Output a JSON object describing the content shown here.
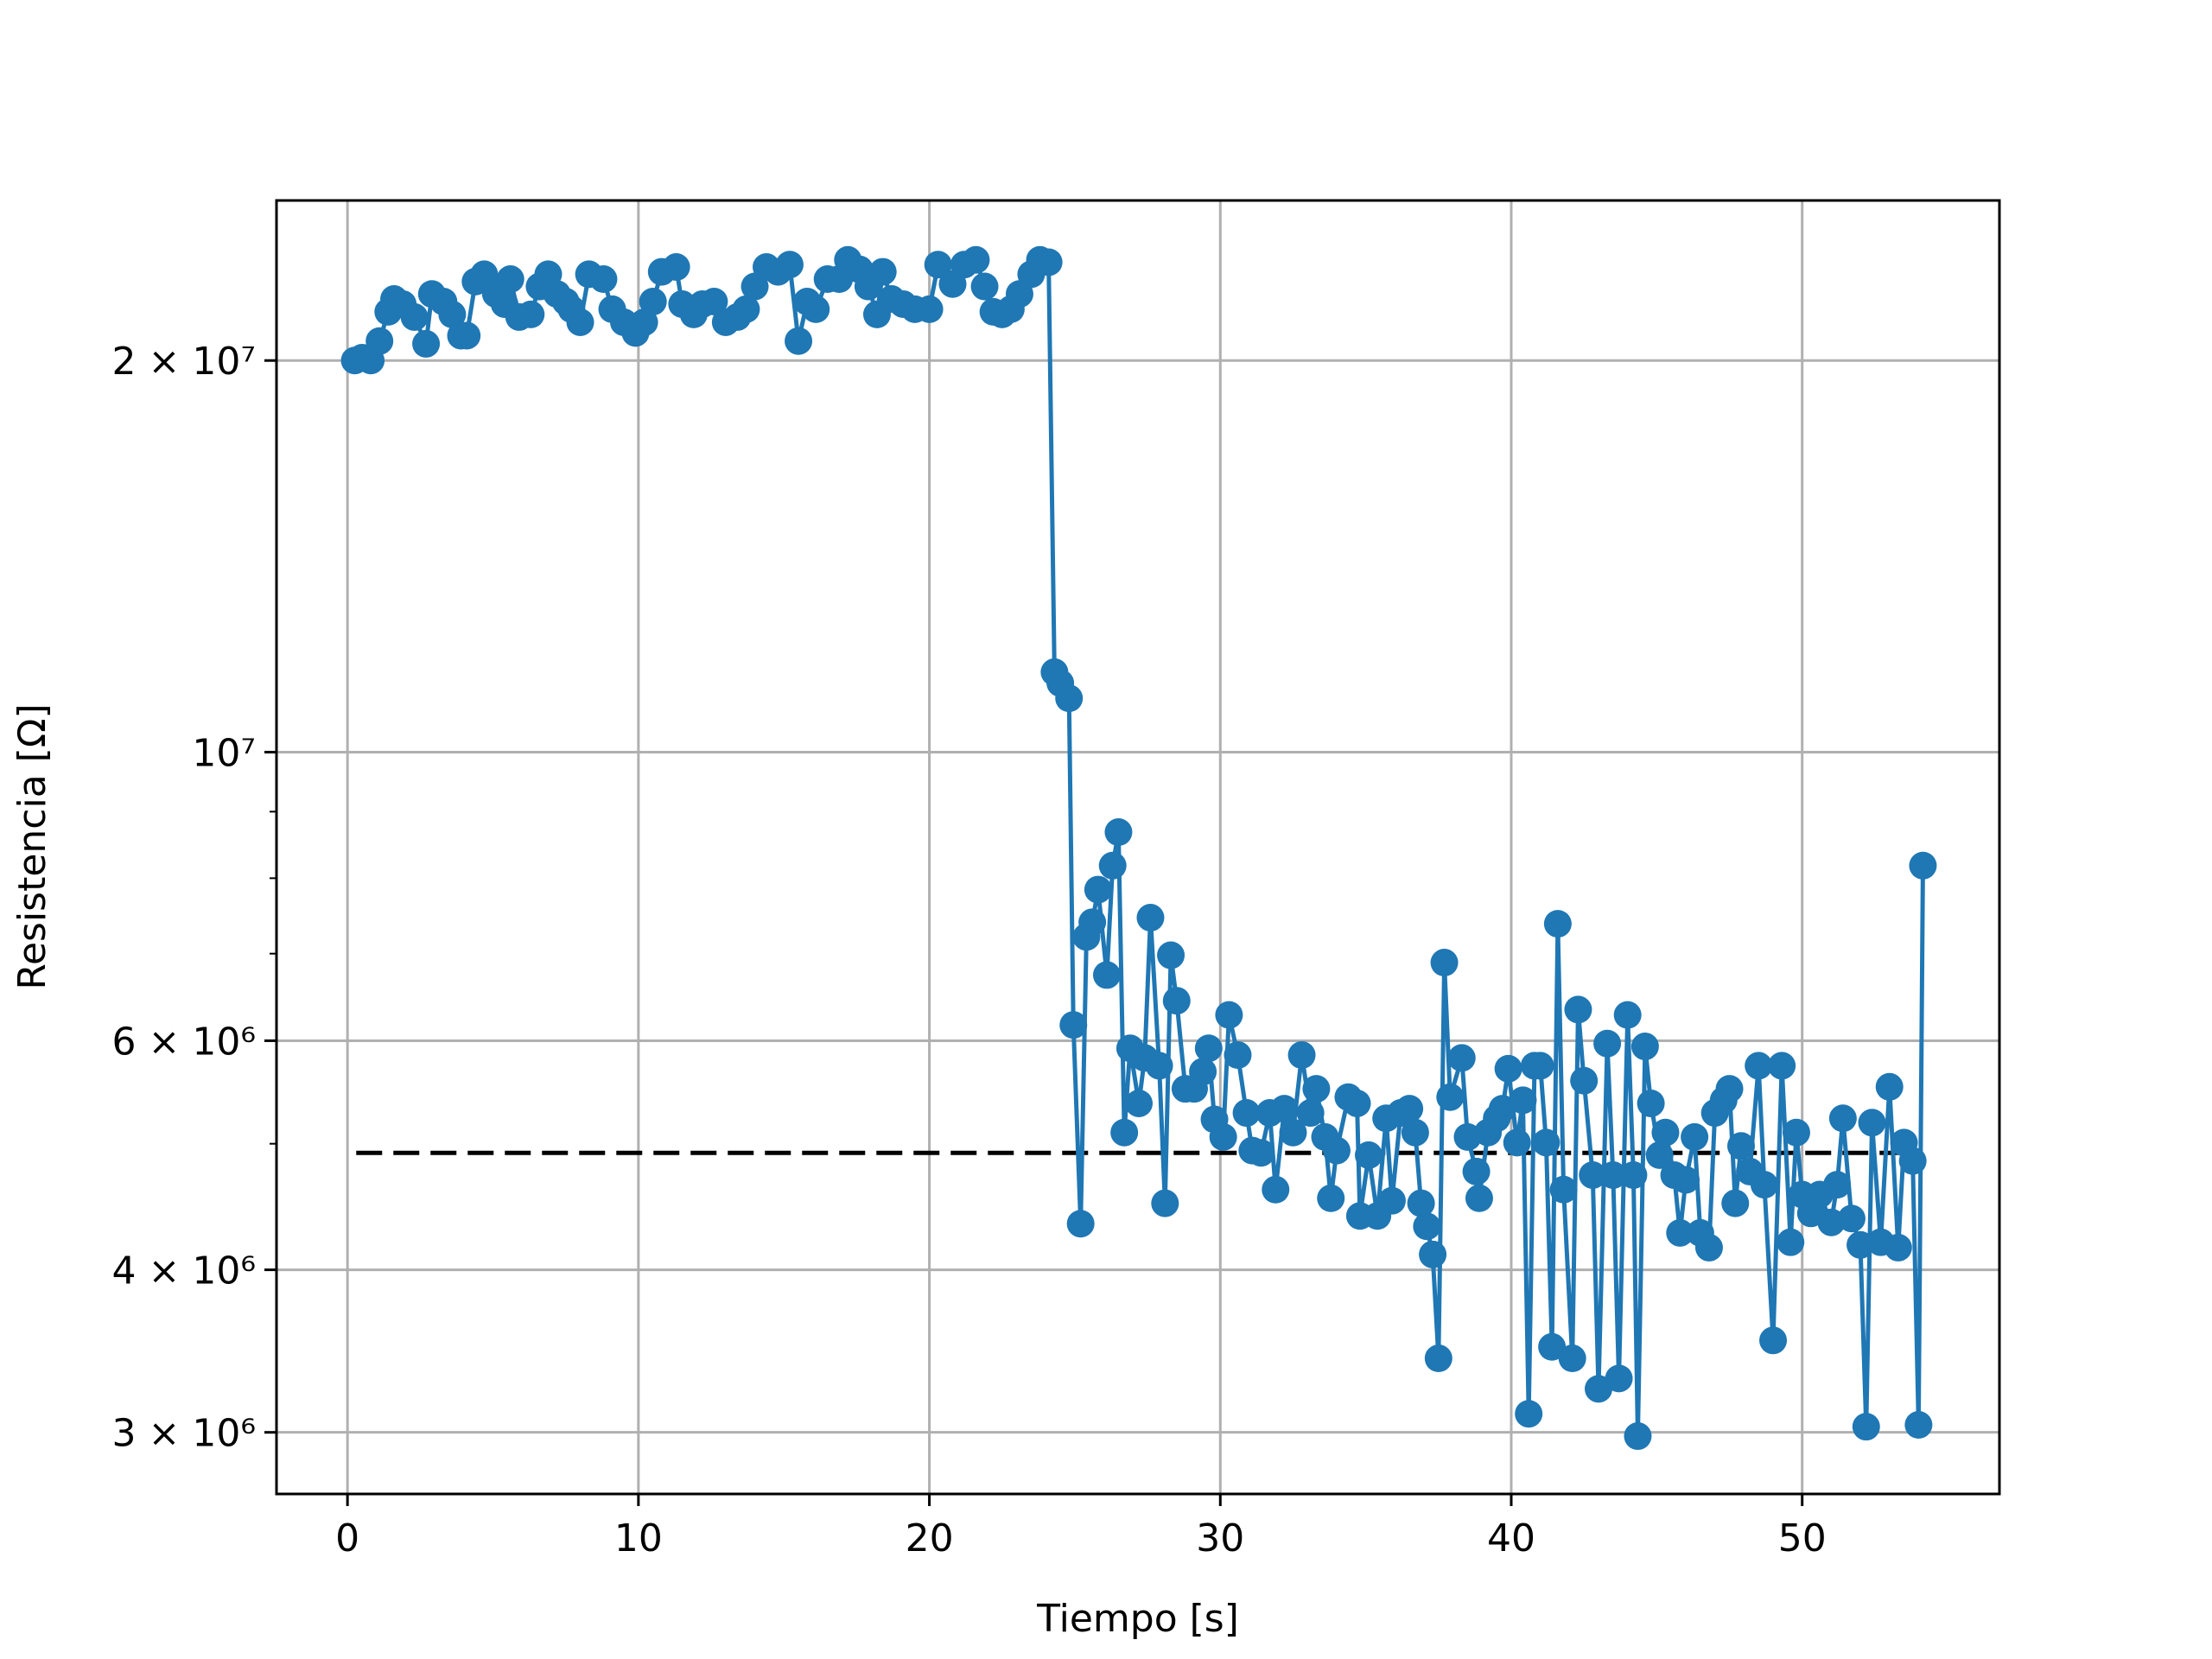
{
  "chart_data": {
    "type": "line",
    "xlabel": "Tiempo [s]",
    "ylabel": "Resistencia [Ω]",
    "yscale": "log",
    "grid": true,
    "xlim": [
      -2.44,
      56.78
    ],
    "ylim": [
      2690000,
      26550000
    ],
    "xticks": [
      0,
      10,
      20,
      30,
      40,
      50
    ],
    "yticks": [
      {
        "value": 3000000,
        "label": "3 × 10⁶"
      },
      {
        "value": 4000000,
        "label": "4 × 10⁶"
      },
      {
        "value": 6000000,
        "label": "6 × 10⁶"
      },
      {
        "value": 10000000,
        "label": "10⁷"
      },
      {
        "value": 20000000,
        "label": "2 × 10⁷"
      }
    ],
    "yminorticks": [
      5000000,
      7000000,
      8000000,
      9000000
    ],
    "x": [
      0.25,
      0.5,
      0.8,
      1.1,
      1.4,
      1.6,
      1.9,
      2.3,
      2.7,
      2.9,
      3.3,
      3.6,
      3.9,
      4.1,
      4.4,
      4.7,
      5.1,
      5.4,
      5.6,
      5.9,
      6.3,
      6.6,
      6.9,
      7.2,
      7.5,
      7.7,
      8.0,
      8.3,
      8.8,
      9.1,
      9.5,
      9.9,
      10.2,
      10.5,
      10.8,
      11.3,
      11.5,
      11.9,
      12.2,
      12.6,
      13.0,
      13.4,
      13.7,
      14.0,
      14.4,
      14.8,
      15.2,
      15.5,
      15.8,
      16.1,
      16.5,
      16.9,
      17.2,
      17.6,
      17.9,
      18.2,
      18.4,
      18.7,
      19.1,
      19.5,
      20.0,
      20.3,
      20.8,
      21.2,
      21.6,
      21.9,
      22.2,
      22.5,
      22.8,
      23.1,
      23.5,
      23.8,
      24.1,
      24.3,
      24.5,
      24.8,
      24.95,
      25.2,
      25.4,
      25.6,
      25.8,
      26.1,
      26.3,
      26.5,
      26.7,
      26.9,
      27.2,
      27.4,
      27.6,
      27.9,
      28.1,
      28.3,
      28.5,
      28.8,
      29.1,
      29.4,
      29.6,
      29.8,
      30.1,
      30.3,
      30.6,
      30.9,
      31.1,
      31.4,
      31.7,
      31.9,
      32.2,
      32.5,
      32.8,
      33.1,
      33.3,
      33.6,
      33.8,
      34.0,
      34.4,
      34.7,
      34.8,
      35.1,
      35.4,
      35.7,
      35.9,
      36.2,
      36.5,
      36.7,
      36.9,
      37.1,
      37.3,
      37.5,
      37.7,
      37.9,
      38.3,
      38.5,
      38.8,
      38.9,
      39.2,
      39.5,
      39.7,
      39.9,
      40.2,
      40.4,
      40.6,
      40.8,
      41.0,
      41.2,
      41.4,
      41.6,
      41.8,
      42.1,
      42.3,
      42.5,
      42.8,
      43.0,
      43.3,
      43.5,
      43.7,
      44.0,
      44.2,
      44.35,
      44.6,
      44.8,
      45.1,
      45.3,
      45.6,
      45.8,
      46.0,
      46.3,
      46.5,
      46.8,
      47.0,
      47.3,
      47.5,
      47.7,
      47.9,
      48.2,
      48.5,
      48.7,
      49.0,
      49.3,
      49.6,
      49.8,
      50.0,
      50.3,
      50.6,
      51.0,
      51.2,
      51.4,
      51.7,
      52.0,
      52.2,
      52.4,
      52.7,
      53.0,
      53.3,
      53.5,
      53.8,
      54.0,
      54.15
    ],
    "series": [
      {
        "color": "#1f77b4",
        "values": [
          20000000.0,
          20100000.0,
          20000000.0,
          20700000.0,
          21800000.0,
          22300000.0,
          22100000.0,
          21600000.0,
          20600000.0,
          22500000.0,
          22200000.0,
          21700000.0,
          20900000.0,
          20900000.0,
          23000000.0,
          23300000.0,
          22500000.0,
          22100000.0,
          23100000.0,
          21600000.0,
          21700000.0,
          22800000.0,
          23300000.0,
          22500000.0,
          22200000.0,
          21900000.0,
          21400000.0,
          23300000.0,
          23100000.0,
          21900000.0,
          21400000.0,
          21000000.0,
          21400000.0,
          22200000.0,
          23400000.0,
          23600000.0,
          22100000.0,
          21700000.0,
          22100000.0,
          22200000.0,
          21400000.0,
          21600000.0,
          21900000.0,
          22800000.0,
          23600000.0,
          23400000.0,
          23700000.0,
          20700000.0,
          22200000.0,
          21900000.0,
          23100000.0,
          23100000.0,
          23900000.0,
          23500000.0,
          22800000.0,
          21700000.0,
          23400000.0,
          22300000.0,
          22100000.0,
          21900000.0,
          21900000.0,
          23700000.0,
          22900000.0,
          23700000.0,
          23900000.0,
          22800000.0,
          21800000.0,
          21700000.0,
          21900000.0,
          22500000.0,
          23300000.0,
          23900000.0,
          23800000.0,
          11520000.0,
          11300000.0,
          11000000.0,
          6170000.0,
          4340000.0,
          7210000.0,
          7400000.0,
          7840000.0,
          6740000.0,
          8180000.0,
          8680000.0,
          5100000.0,
          5920000.0,
          5370000.0,
          5820000.0,
          7460000.0,
          5740000.0,
          4500000.0,
          6980000.0,
          6440000.0,
          5510000.0,
          5510000.0,
          5680000.0,
          5920000.0,
          5220000.0,
          5060000.0,
          6280000.0,
          5850000.0,
          5280000.0,
          4940000.0,
          4920000.0,
          5280000.0,
          4610000.0,
          5320000.0,
          5100000.0,
          5850000.0,
          5280000.0,
          5510000.0,
          5060000.0,
          4540000.0,
          4940000.0,
          5430000.0,
          5370000.0,
          4400000.0,
          4900000.0,
          4400000.0,
          5230000.0,
          4520000.0,
          5280000.0,
          5320000.0,
          5100000.0,
          4500000.0,
          4320000.0,
          4110000.0,
          3420000.0,
          6890000.0,
          5430000.0,
          5820000.0,
          5060000.0,
          4760000.0,
          4540000.0,
          5100000.0,
          5230000.0,
          5320000.0,
          5710000.0,
          5010000.0,
          5400000.0,
          3100000.0,
          5740000.0,
          5740000.0,
          5010000.0,
          3490000.0,
          7380000.0,
          4610000.0,
          3420000.0,
          6340000.0,
          5590000.0,
          4730000.0,
          3240000.0,
          5970000.0,
          4730000.0,
          3300000.0,
          6280000.0,
          4730000.0,
          2980000.0,
          5940000.0,
          5370000.0,
          4900000.0,
          5100000.0,
          4730000.0,
          4270000.0,
          4690000.0,
          5060000.0,
          4270000.0,
          4160000.0,
          5280000.0,
          5400000.0,
          5510000.0,
          4500000.0,
          4980000.0,
          4760000.0,
          5740000.0,
          4650000.0,
          3530000.0,
          5740000.0,
          4200000.0,
          5100000.0,
          4570000.0,
          4420000.0,
          4570000.0,
          4350000.0,
          4650000.0,
          5230000.0,
          4380000.0,
          4180000.0,
          3030000.0,
          5190000.0,
          4200000.0,
          5530000.0,
          4160000.0,
          5010000.0,
          4850000.0,
          3040000.0,
          8180000.0
        ]
      }
    ],
    "hlines": [
      {
        "y": 4920000,
        "xmin": 0.3,
        "xmax": 54.1,
        "color": "#000000",
        "style": "dashed"
      }
    ]
  }
}
